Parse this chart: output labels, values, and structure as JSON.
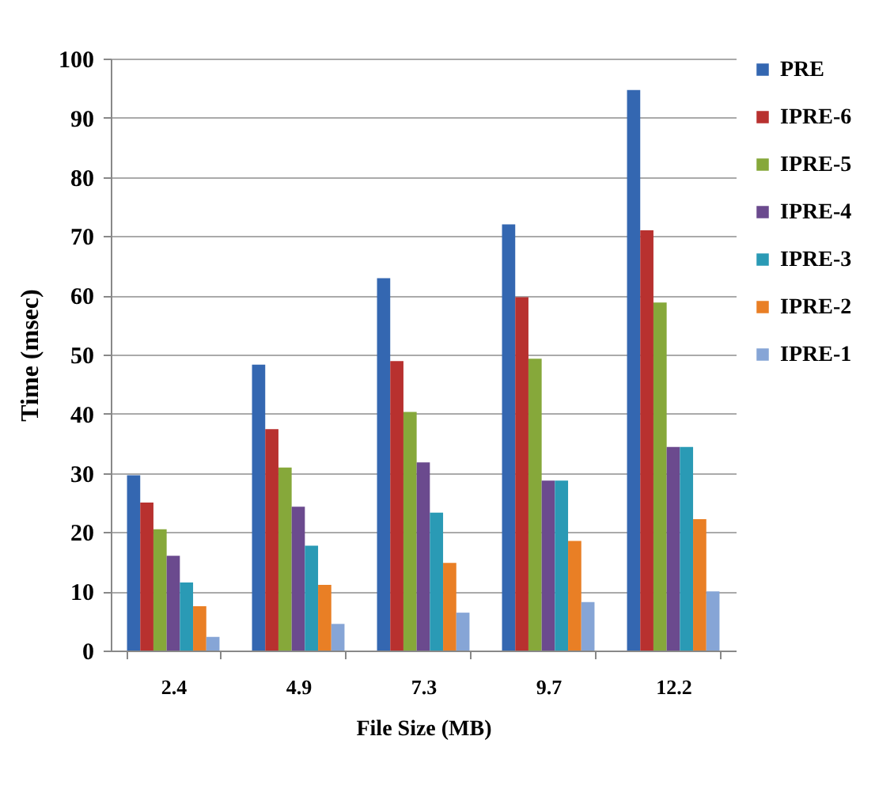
{
  "chart_data": {
    "type": "bar",
    "xlabel": "File Size (MB)",
    "ylabel": "Time (msec)",
    "categories": [
      "2.4",
      "4.9",
      "7.3",
      "9.7",
      "12.2"
    ],
    "series": [
      {
        "name": "PRE",
        "color": "#3467b1",
        "values": [
          29.6,
          48.3,
          62.9,
          72,
          94.7
        ]
      },
      {
        "name": "IPRE-6",
        "color": "#b8312f",
        "values": [
          25,
          37.4,
          48.9,
          59.7,
          71
        ]
      },
      {
        "name": "IPRE-5",
        "color": "#86a83a",
        "values": [
          20.5,
          30.9,
          40.3,
          49.3,
          58.8
        ]
      },
      {
        "name": "IPRE-4",
        "color": "#6b4a8e",
        "values": [
          16,
          24.3,
          31.8,
          28.7,
          34.4
        ]
      },
      {
        "name": "IPRE-3",
        "color": "#2a9ab5",
        "values": [
          11.5,
          17.7,
          23.3,
          28.7,
          34.4
        ]
      },
      {
        "name": "IPRE-2",
        "color": "#e97f25",
        "values": [
          7.5,
          11.1,
          14.8,
          18.5,
          22.2
        ]
      },
      {
        "name": "IPRE-1",
        "color": "#86a5d6",
        "values": [
          2.3,
          4.5,
          6.4,
          8.2,
          10
        ]
      }
    ],
    "ylim": [
      0,
      100
    ],
    "yticks": [
      0,
      10,
      20,
      30,
      40,
      50,
      60,
      70,
      80,
      90,
      100
    ],
    "grid": "y",
    "legend": "right"
  }
}
